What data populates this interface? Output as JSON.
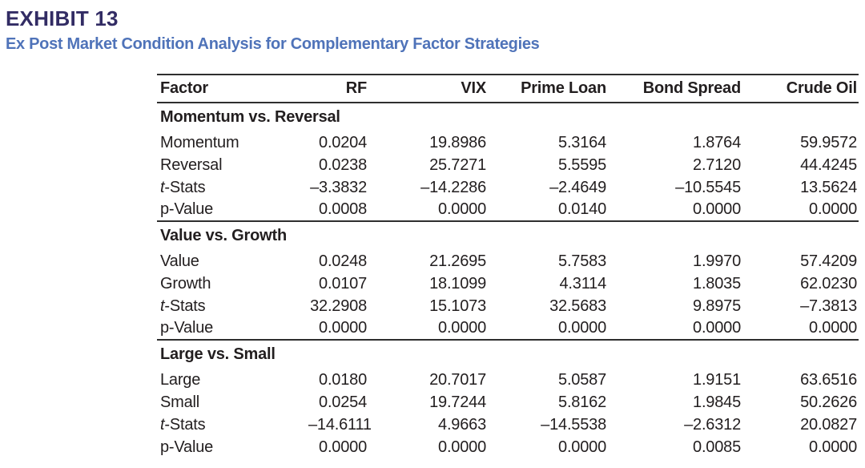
{
  "exhibit": {
    "label": "EXHIBIT 13",
    "title": "Ex Post Market Condition Analysis for Complementary Factor Strategies"
  },
  "table": {
    "columns": [
      "Factor",
      "RF",
      "VIX",
      "Prime Loan",
      "Bond Spread",
      "Crude Oil"
    ],
    "sections": [
      {
        "header": "Momentum vs. Reversal",
        "rows": [
          {
            "label_it": "",
            "label": "Momentum",
            "values": [
              "0.0204",
              "19.8986",
              "5.3164",
              "1.8764",
              "59.9572"
            ]
          },
          {
            "label_it": "",
            "label": "Reversal",
            "values": [
              "0.0238",
              "25.7271",
              "5.5595",
              "2.7120",
              "44.4245"
            ]
          },
          {
            "label_it": "t",
            "label": "-Stats",
            "values": [
              "–3.3832",
              "–14.2286",
              "–2.4649",
              "–10.5545",
              "13.5624"
            ]
          },
          {
            "label_it": "",
            "label": "p-Value",
            "values": [
              "0.0008",
              "0.0000",
              "0.0140",
              "0.0000",
              "0.0000"
            ]
          }
        ]
      },
      {
        "header": "Value vs. Growth",
        "rows": [
          {
            "label_it": "",
            "label": "Value",
            "values": [
              "0.0248",
              "21.2695",
              "5.7583",
              "1.9970",
              "57.4209"
            ]
          },
          {
            "label_it": "",
            "label": "Growth",
            "values": [
              "0.0107",
              "18.1099",
              "4.3114",
              "1.8035",
              "62.0230"
            ]
          },
          {
            "label_it": "t",
            "label": "-Stats",
            "values": [
              "32.2908",
              "15.1073",
              "32.5683",
              "9.8975",
              "–7.3813"
            ]
          },
          {
            "label_it": "",
            "label": "p-Value",
            "values": [
              "0.0000",
              "0.0000",
              "0.0000",
              "0.0000",
              "0.0000"
            ]
          }
        ]
      },
      {
        "header": "Large vs. Small",
        "rows": [
          {
            "label_it": "",
            "label": "Large",
            "values": [
              "0.0180",
              "20.7017",
              "5.0587",
              "1.9151",
              "63.6516"
            ]
          },
          {
            "label_it": "",
            "label": "Small",
            "values": [
              "0.0254",
              "19.7244",
              "5.8162",
              "1.9845",
              "50.2626"
            ]
          },
          {
            "label_it": "t",
            "label": "-Stats",
            "values": [
              "–14.6111",
              "4.9663",
              "–14.5538",
              "–2.6312",
              "20.0827"
            ]
          },
          {
            "label_it": "",
            "label": "p-Value",
            "values": [
              "0.0000",
              "0.0000",
              "0.0000",
              "0.0085",
              "0.0000"
            ]
          }
        ]
      }
    ]
  },
  "colors": {
    "exhibit_label": "#322c64",
    "exhibit_title": "#4f73b9",
    "table_text": "#221e1f",
    "rule": "#2e2e2e"
  }
}
